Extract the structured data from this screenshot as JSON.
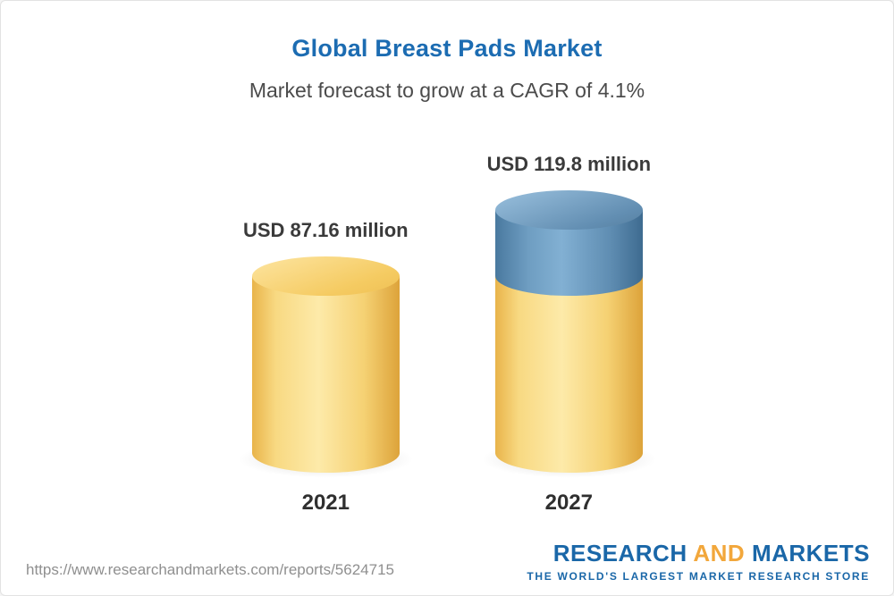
{
  "chart_data": {
    "type": "bar",
    "title": "Global Breast Pads Market",
    "subtitle": "Market forecast to grow at a CAGR of 4.1%",
    "categories": [
      "2021",
      "2027"
    ],
    "values": [
      87.16,
      119.8
    ],
    "value_labels": [
      "USD 87.16 million",
      "USD 119.8 million"
    ],
    "unit": "USD million",
    "cagr_pct": 4.1,
    "ylim": [
      0,
      119.8
    ],
    "grid": false,
    "legend": "none",
    "colors": {
      "bar_base": "#f6cf6b",
      "bar_growth_segment": "#6e9dc1",
      "title": "#1c6cb2"
    },
    "notes": "2027 bar is a stacked cylinder: yellow base equal to 2021 value plus blue growth segment on top"
  },
  "footer": {
    "url": "https://www.researchandmarkets.com/reports/5624715",
    "logo": {
      "part1": "RESEARCH ",
      "part2": "AND",
      "part3": " MARKETS",
      "tagline": "THE WORLD'S LARGEST MARKET RESEARCH STORE"
    }
  }
}
